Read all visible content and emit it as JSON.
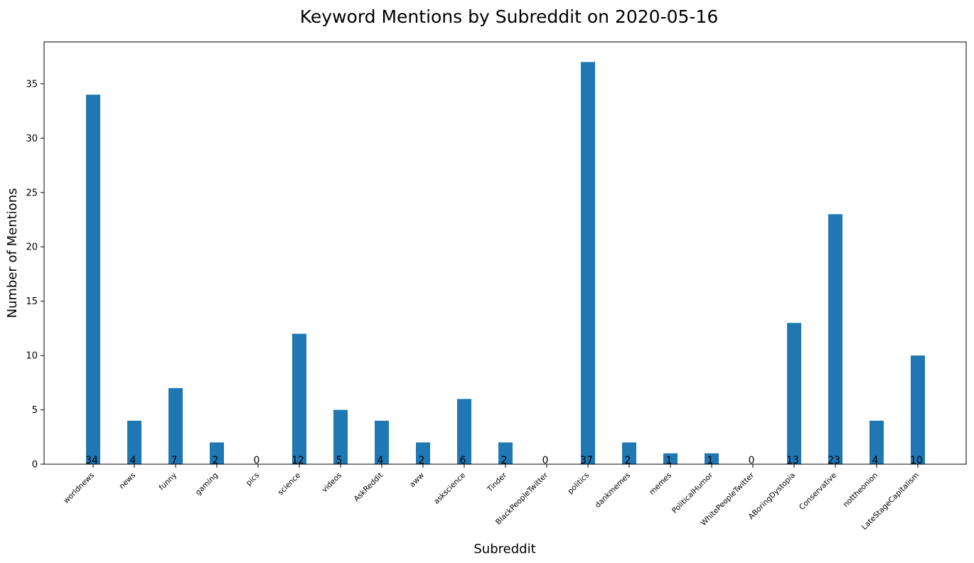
{
  "chart_data": {
    "type": "bar",
    "title": "Keyword Mentions by Subreddit on 2020-05-16",
    "xlabel": "Subreddit",
    "ylabel": "Number of Mentions",
    "categories": [
      "worldnews",
      "news",
      "funny",
      "gaming",
      "pics",
      "science",
      "videos",
      "AskReddit",
      "aww",
      "askscience",
      "Tinder",
      "BlackPeopleTwitter",
      "politics",
      "dankmemes",
      "memes",
      "PoliticalHumor",
      "WhitePeopleTwitter",
      "ABoringDystopia",
      "Conservative",
      "nottheonion",
      "LateStageCapitalism"
    ],
    "values": [
      34,
      4,
      7,
      2,
      0,
      12,
      5,
      4,
      2,
      6,
      2,
      0,
      37,
      2,
      1,
      1,
      0,
      13,
      23,
      4,
      10
    ],
    "ylim": [
      0,
      38.85
    ],
    "yticks": [
      0,
      5,
      10,
      15,
      20,
      25,
      30,
      35
    ],
    "bar_color": "#1f77b4",
    "grid": false,
    "legend": "none"
  }
}
